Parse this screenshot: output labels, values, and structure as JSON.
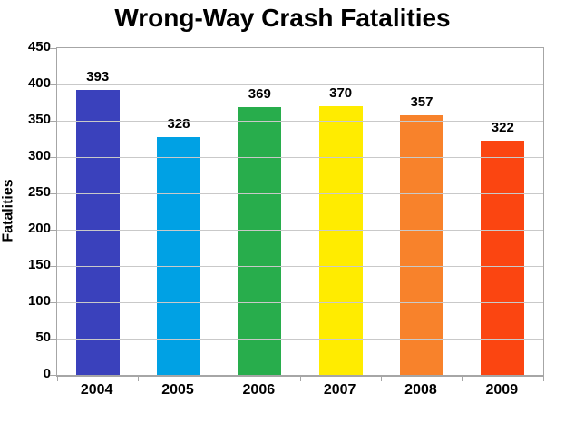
{
  "figure": {
    "background": "#ffffff"
  },
  "chart_data": {
    "type": "bar",
    "title": "Wrong-Way Crash Fatalities",
    "xlabel": "",
    "ylabel": "Fatalities",
    "categories": [
      "2004",
      "2005",
      "2006",
      "2007",
      "2008",
      "2009"
    ],
    "values": [
      393,
      328,
      369,
      370,
      357,
      322
    ],
    "bar_colors": [
      "#3a41bc",
      "#00a1e4",
      "#28ad4c",
      "#ffec00",
      "#f8822b",
      "#fb4511"
    ],
    "ylim": [
      0,
      450
    ],
    "ytick_step": 50,
    "grid": true,
    "value_labels_shown": true,
    "legend": "none"
  },
  "colors": {
    "grid": "#c9c9c9",
    "axis": "#a6a6a6",
    "text": "#000000",
    "background": "#ffffff"
  }
}
